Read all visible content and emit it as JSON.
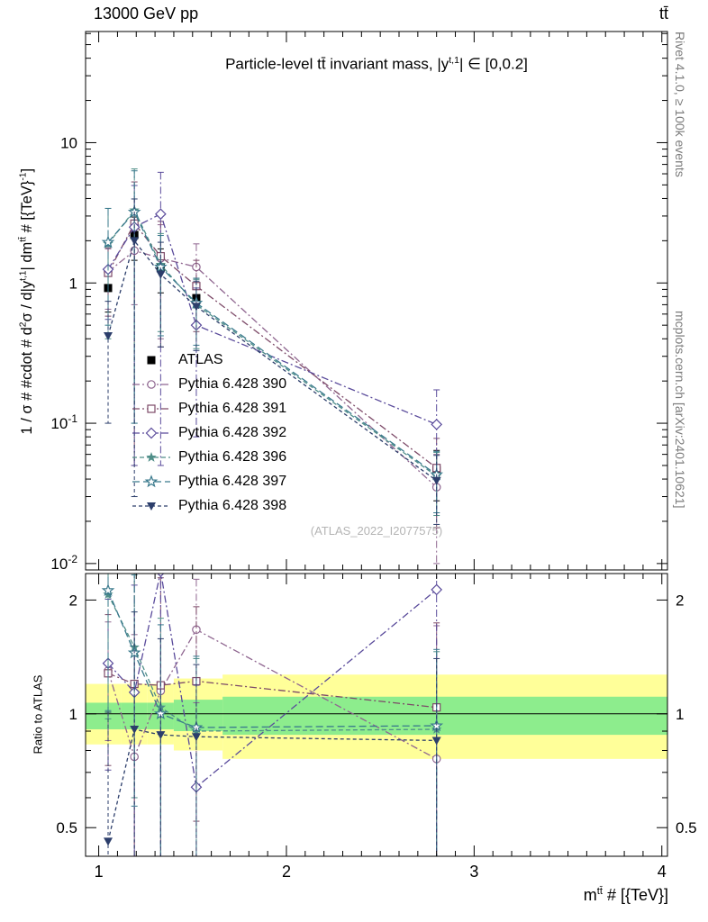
{
  "header": {
    "left": "13000 GeV pp",
    "right": "tt̄"
  },
  "side_notes": {
    "top": "Rivet 4.1.0, ≥ 100k events",
    "bottom": "mcplots.cern.ch [arXiv:2401.10621]"
  },
  "watermark": "(ATLAS_2022_I2077575)",
  "title": {
    "p0": "Particle-level tt̄ invariant mass, |y",
    "sup": "t,1",
    "p1": "| ∈ [0,0.2]"
  },
  "ylabel_main": {
    "p0": "1 / σ # #cdot # d",
    "s0": "2",
    "p1": "σ / d|y",
    "s1": "t,1",
    "p2": "| dm",
    "s2": "tt̄",
    "p3": " # [{TeV}",
    "s3": "-1",
    "p4": "]"
  },
  "ylabel_ratio": "Ratio to ATLAS",
  "xlabel": {
    "p0": "m",
    "sup": "tt̄",
    "p1": " # [{TeV}]"
  },
  "chart_data": {
    "type": "line",
    "title": "Particle-level tt invariant mass, |y^{t,1}| ∈ [0,0.2]",
    "xlabel": "m^{tt} # [{TeV}]",
    "ylabel": "1 / σ # #cdot # d^2σ / d|y^{t,1}| dm^{tt} # [{TeV}^{-1}]",
    "ratio_label": "Ratio to ATLAS",
    "yscale": "log",
    "ratio_scale": "log",
    "grid": false,
    "legend_position": "middle-left",
    "xlim": [
      0.93,
      4.03
    ],
    "ylim_main": [
      0.009,
      62
    ],
    "ylim_ratio": [
      0.42,
      2.35
    ],
    "x": [
      1.05,
      1.19,
      1.33,
      1.52,
      2.8
    ],
    "band_edges": [
      0.93,
      1.12,
      1.26,
      1.4,
      1.66,
      4.03
    ],
    "bands": {
      "yellow": {
        "color": "#ffff99",
        "lo": [
          0.83,
          0.83,
          0.83,
          0.8,
          0.76
        ],
        "hi": [
          1.2,
          1.2,
          1.2,
          1.24,
          1.27
        ]
      },
      "green": {
        "color": "#8ded8d",
        "lo": [
          0.91,
          0.91,
          0.91,
          0.9,
          0.88
        ],
        "hi": [
          1.07,
          1.07,
          1.07,
          1.09,
          1.11
        ]
      }
    },
    "axes": {
      "x": {
        "ticks": [
          {
            "v": 1,
            "label": "1"
          },
          {
            "v": 2,
            "label": "2"
          },
          {
            "v": 3,
            "label": "3"
          },
          {
            "v": 4,
            "label": "4"
          }
        ]
      },
      "y_main": {
        "ticks": [
          {
            "v": 0.01,
            "base": "10",
            "exp": "-2"
          },
          {
            "v": 0.1,
            "base": "10",
            "exp": "-1"
          },
          {
            "v": 1,
            "base": "1",
            "exp": null
          },
          {
            "v": 10,
            "base": "10",
            "exp": null
          }
        ]
      },
      "y_ratio": {
        "ticks": [
          {
            "v": 0.5,
            "label": "0.5"
          },
          {
            "v": 1,
            "label": "1"
          },
          {
            "v": 2,
            "label": "2"
          }
        ],
        "minors": [
          0.6,
          0.7,
          0.8,
          0.9
        ]
      }
    },
    "series": [
      {
        "name": "ATLAS",
        "color": "#000000",
        "marker": "square-filled",
        "dash": null,
        "values": [
          0.92,
          2.2,
          1.3,
          0.78,
          0.046
        ],
        "err": [
          0.3,
          0.75,
          0.45,
          0.3,
          0.018
        ],
        "ratio": null,
        "ratio_err": null
      },
      {
        "name": "Pythia 6.428 390",
        "color": "#8f6690",
        "marker": "circle-open",
        "dash": "8,3,2,3",
        "values": [
          1.2,
          1.7,
          1.5,
          1.3,
          0.035
        ],
        "err": [
          0.55,
          1.0,
          1.1,
          0.6,
          0.025
        ],
        "ratio": [
          1.3,
          0.77,
          1.15,
          1.67,
          0.76
        ],
        "ratio_err": [
          0.45,
          0.85,
          1.3,
          0.6,
          0.95
        ]
      },
      {
        "name": "Pythia 6.428 391",
        "color": "#7d4a68",
        "marker": "square-open",
        "dash": "8,3,2,3",
        "values": [
          1.18,
          2.65,
          1.55,
          0.95,
          0.048
        ],
        "err": [
          0.6,
          2.6,
          1.2,
          0.5,
          0.03
        ],
        "ratio": [
          1.28,
          1.2,
          1.19,
          1.22,
          1.04
        ],
        "ratio_err": [
          0.55,
          1.2,
          1.1,
          0.7,
          0.7
        ]
      },
      {
        "name": "Pythia 6.428 392",
        "color": "#5a4b9b",
        "marker": "diamond-open",
        "dash": "8,3,2,3",
        "values": [
          1.25,
          2.5,
          3.1,
          0.5,
          0.098
        ],
        "err": [
          0.7,
          2.45,
          3.05,
          0.42,
          0.075
        ],
        "ratio": [
          1.36,
          1.14,
          2.38,
          0.64,
          2.13
        ],
        "ratio_err": [
          0.65,
          1.05,
          2.3,
          0.55,
          1.9
        ]
      },
      {
        "name": "Pythia 6.428 396",
        "color": "#4f8e88",
        "marker": "star-filled",
        "dash": "5,3",
        "values": [
          1.9,
          3.3,
          1.35,
          0.7,
          0.042
        ],
        "err": [
          1.5,
          3.2,
          0.9,
          0.36,
          0.02
        ],
        "ratio": [
          2.07,
          1.5,
          1.04,
          0.9,
          0.91
        ],
        "ratio_err": [
          1.1,
          0.9,
          0.75,
          0.5,
          0.55
        ]
      },
      {
        "name": "Pythia 6.428 397",
        "color": "#39798c",
        "marker": "star-open",
        "dash": "8,4",
        "values": [
          1.95,
          3.2,
          1.3,
          0.72,
          0.043
        ],
        "err": [
          1.45,
          3.1,
          0.88,
          0.36,
          0.02
        ],
        "ratio": [
          2.12,
          1.45,
          1.0,
          0.92,
          0.93
        ],
        "ratio_err": [
          1.1,
          0.88,
          0.72,
          0.5,
          0.55
        ]
      },
      {
        "name": "Pythia 6.428 398",
        "color": "#2c3e6b",
        "marker": "triangle-down-filled",
        "dash": "4,3",
        "values": [
          0.42,
          2.0,
          1.15,
          0.68,
          0.039
        ],
        "err": [
          0.32,
          1.97,
          0.8,
          0.35,
          0.02
        ],
        "ratio": [
          0.46,
          0.91,
          0.88,
          0.87,
          0.85
        ],
        "ratio_err": [
          0.55,
          0.95,
          0.7,
          0.48,
          0.55
        ]
      }
    ]
  }
}
